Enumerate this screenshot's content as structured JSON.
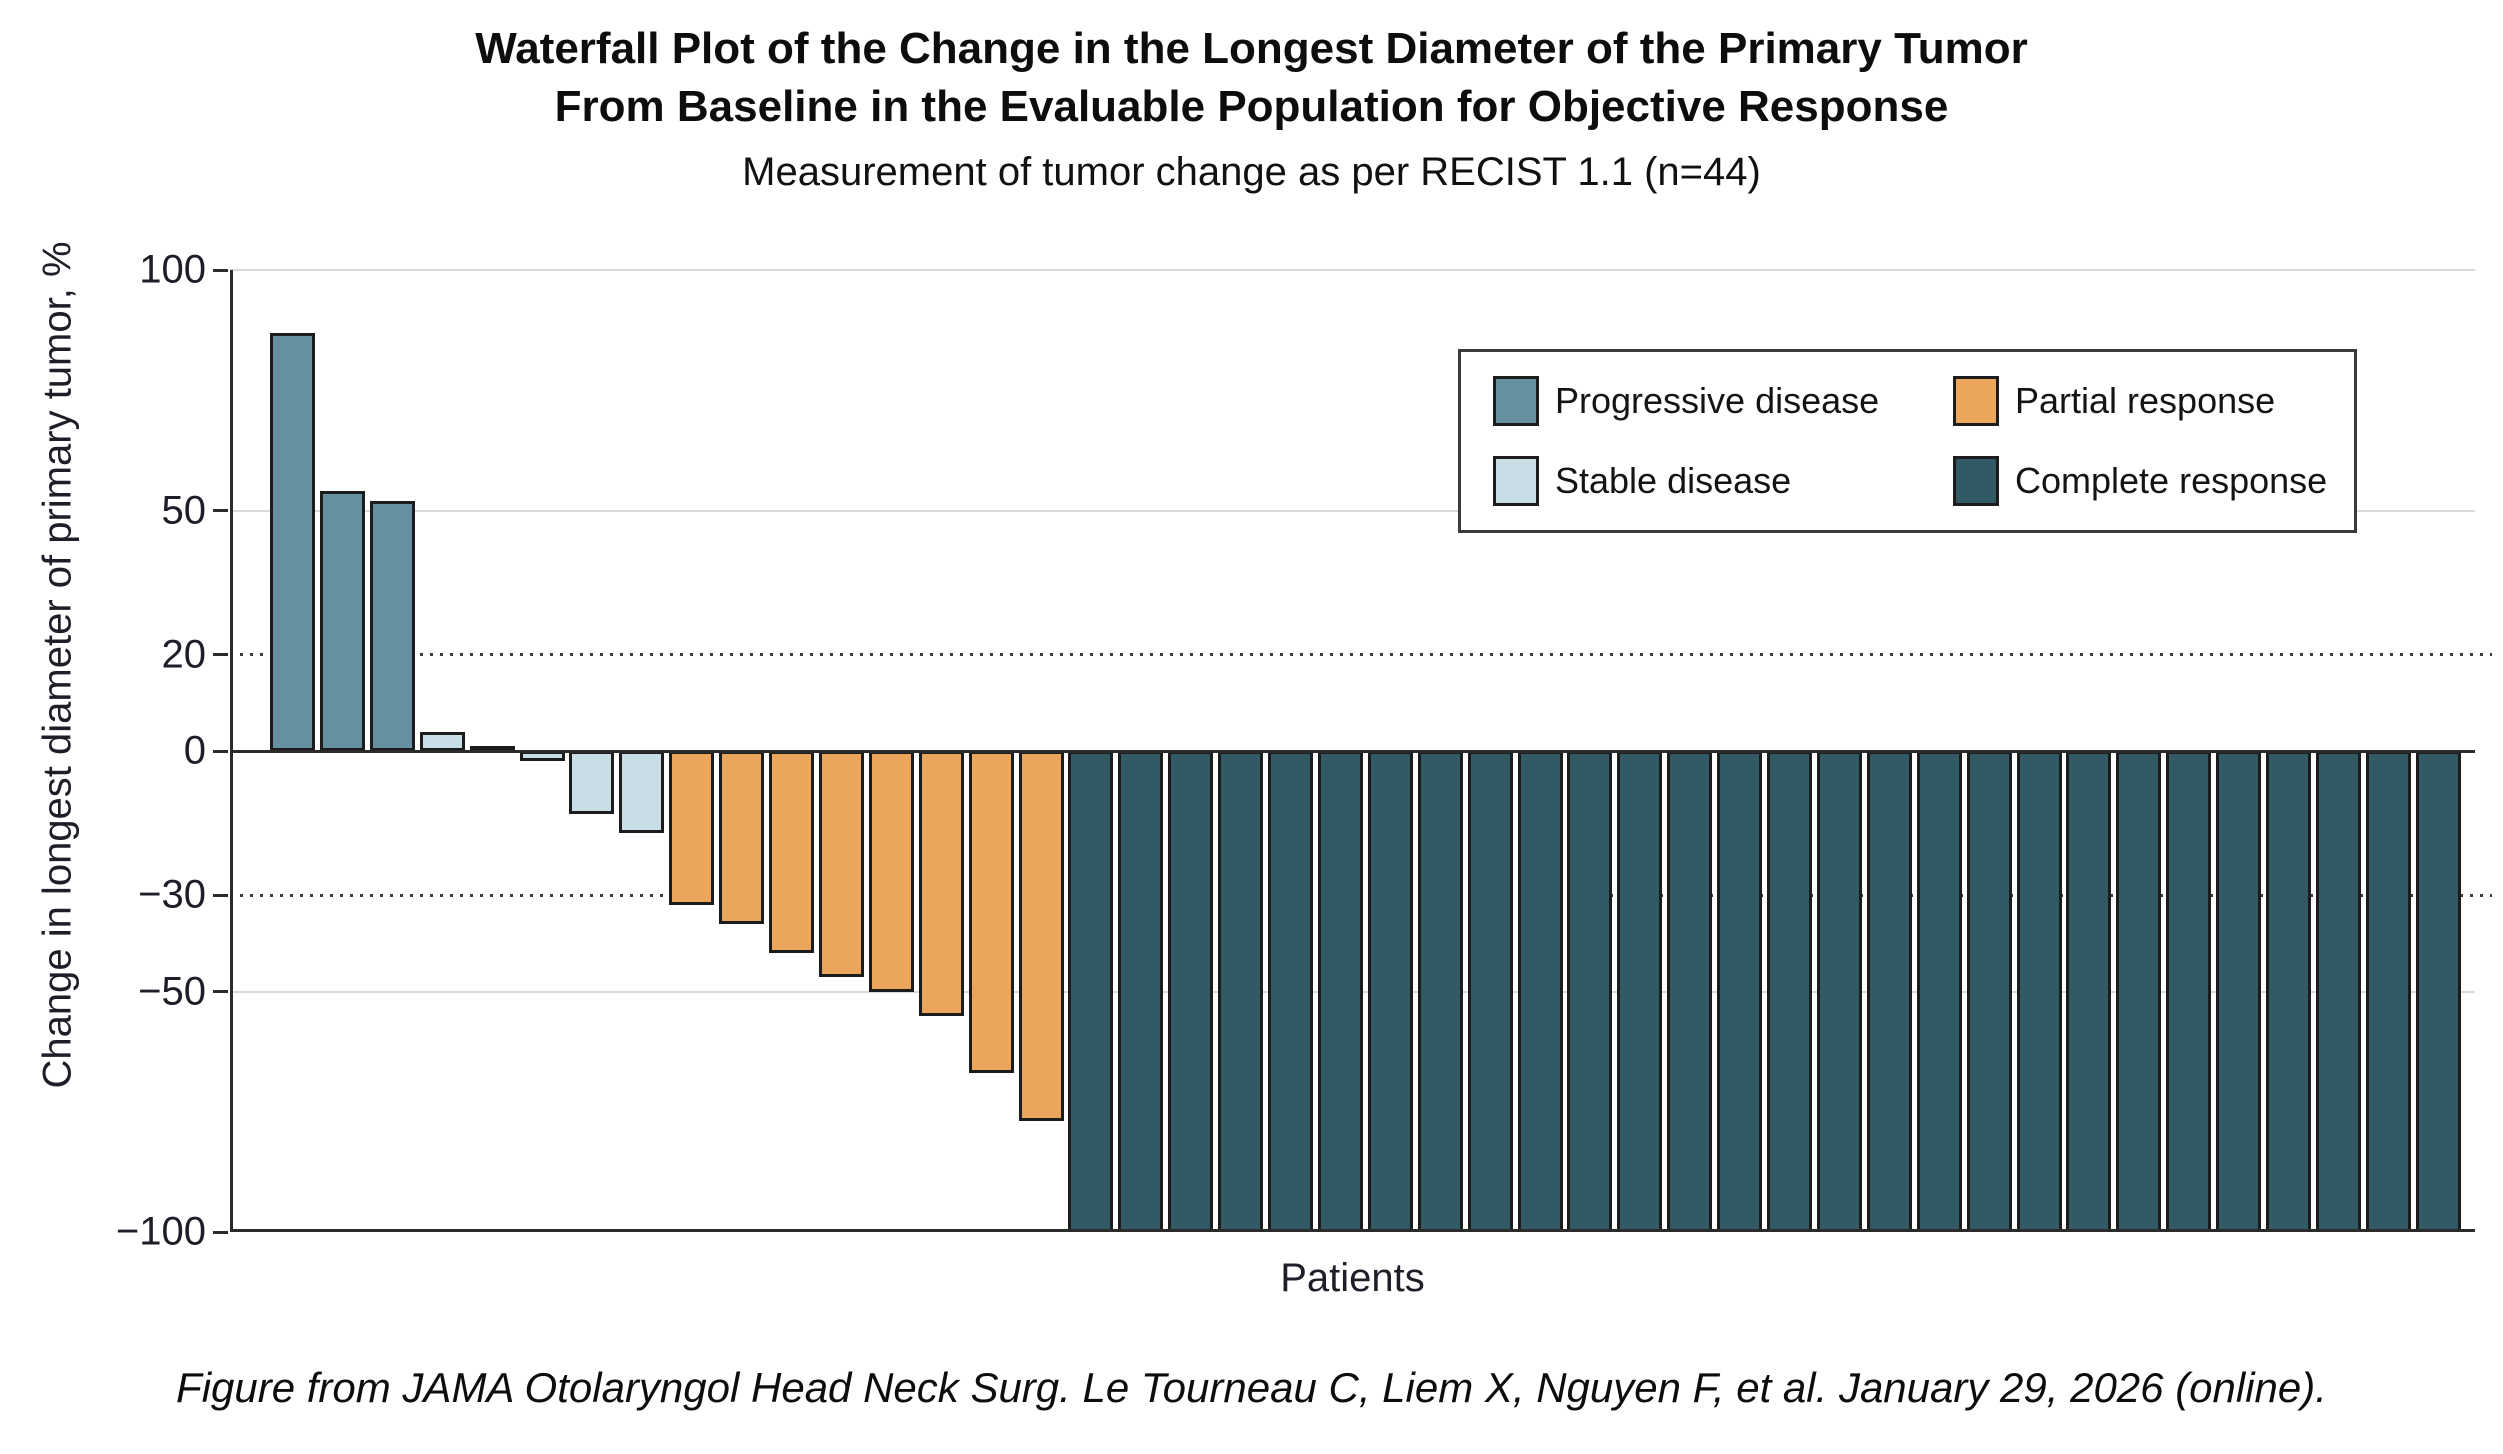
{
  "title": {
    "line1": "Waterfall Plot of the Change in the Longest Diameter of the Primary Tumor",
    "line2": "From Baseline in the Evaluable Population for Objective Response"
  },
  "subtitle": "Measurement of tumor change as per RECIST 1.1 (n=44)",
  "y_axis": {
    "label": "Change in longest diameter of primary tumor, %"
  },
  "x_axis": {
    "label": "Patients"
  },
  "legend": {
    "items": [
      {
        "key": "progressive",
        "label": "Progressive disease",
        "color": "#64909f"
      },
      {
        "key": "partial",
        "label": "Partial response",
        "color": "#eba65c"
      },
      {
        "key": "stable",
        "label": "Stable disease",
        "color": "#c9dde6"
      },
      {
        "key": "complete",
        "label": "Complete response",
        "color": "#315a64"
      }
    ]
  },
  "caption": "Figure from JAMA Otolaryngol Head Neck Surg. Le Tourneau C, Liem X, Nguyen F, et al. January 29, 2026 (online).",
  "colors": {
    "gridline": "#d9d9d9",
    "threshold_dotted": "#3d3d3d",
    "axis": "#2b2b2b",
    "bar_border": "#1c1c1c",
    "background": "#ffffff"
  },
  "chart_data": {
    "type": "bar",
    "subtype": "waterfall",
    "title": "Waterfall Plot of the Change in the Longest Diameter of the Primary Tumor From Baseline in the Evaluable Population for Objective Response",
    "subtitle": "Measurement of tumor change as per RECIST 1.1 (n=44)",
    "n": 44,
    "xlabel": "Patients",
    "ylabel": "Change in longest diameter of primary tumor, %",
    "ylim": [
      -100,
      100
    ],
    "legend_position": "upper right",
    "y_ticks": [
      {
        "value": 100,
        "label": "100"
      },
      {
        "value": 50,
        "label": "50"
      },
      {
        "value": 20,
        "label": "20"
      },
      {
        "value": 0,
        "label": "0"
      },
      {
        "value": -30,
        "label": "−30"
      },
      {
        "value": -50,
        "label": "−50"
      },
      {
        "value": -100,
        "label": "−100"
      }
    ],
    "reference_lines": {
      "solid": [
        100,
        50,
        -50
      ],
      "dotted": [
        20,
        -30
      ],
      "baseline": 0,
      "bottom": -100
    },
    "bars": [
      {
        "value": 87,
        "response": "progressive"
      },
      {
        "value": 54,
        "response": "progressive"
      },
      {
        "value": 52,
        "response": "progressive"
      },
      {
        "value": 4,
        "response": "stable"
      },
      {
        "value": 1,
        "response": "stable"
      },
      {
        "value": -2,
        "response": "stable"
      },
      {
        "value": -13,
        "response": "stable"
      },
      {
        "value": -17,
        "response": "stable"
      },
      {
        "value": -32,
        "response": "partial"
      },
      {
        "value": -36,
        "response": "partial"
      },
      {
        "value": -42,
        "response": "partial"
      },
      {
        "value": -47,
        "response": "partial"
      },
      {
        "value": -50,
        "response": "partial"
      },
      {
        "value": -55,
        "response": "partial"
      },
      {
        "value": -67,
        "response": "partial"
      },
      {
        "value": -77,
        "response": "partial"
      },
      {
        "value": -100,
        "response": "complete"
      },
      {
        "value": -100,
        "response": "complete"
      },
      {
        "value": -100,
        "response": "complete"
      },
      {
        "value": -100,
        "response": "complete"
      },
      {
        "value": -100,
        "response": "complete"
      },
      {
        "value": -100,
        "response": "complete"
      },
      {
        "value": -100,
        "response": "complete"
      },
      {
        "value": -100,
        "response": "complete"
      },
      {
        "value": -100,
        "response": "complete"
      },
      {
        "value": -100,
        "response": "complete"
      },
      {
        "value": -100,
        "response": "complete"
      },
      {
        "value": -100,
        "response": "complete"
      },
      {
        "value": -100,
        "response": "complete"
      },
      {
        "value": -100,
        "response": "complete"
      },
      {
        "value": -100,
        "response": "complete"
      },
      {
        "value": -100,
        "response": "complete"
      },
      {
        "value": -100,
        "response": "complete"
      },
      {
        "value": -100,
        "response": "complete"
      },
      {
        "value": -100,
        "response": "complete"
      },
      {
        "value": -100,
        "response": "complete"
      },
      {
        "value": -100,
        "response": "complete"
      },
      {
        "value": -100,
        "response": "complete"
      },
      {
        "value": -100,
        "response": "complete"
      },
      {
        "value": -100,
        "response": "complete"
      },
      {
        "value": -100,
        "response": "complete"
      },
      {
        "value": -100,
        "response": "complete"
      },
      {
        "value": -100,
        "response": "complete"
      },
      {
        "value": -100,
        "response": "complete"
      }
    ]
  }
}
